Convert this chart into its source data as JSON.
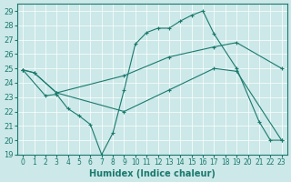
{
  "xlabel": "Humidex (Indice chaleur)",
  "bg_color": "#cce8e8",
  "line_color": "#1a7a6e",
  "xlim": [
    -0.5,
    23.5
  ],
  "ylim": [
    19,
    29.5
  ],
  "yticks": [
    19,
    20,
    21,
    22,
    23,
    24,
    25,
    26,
    27,
    28,
    29
  ],
  "xticks": [
    0,
    1,
    2,
    3,
    4,
    5,
    6,
    7,
    8,
    9,
    10,
    11,
    12,
    13,
    14,
    15,
    16,
    17,
    18,
    19,
    20,
    21,
    22,
    23
  ],
  "line1_x": [
    0,
    2,
    3,
    4,
    5,
    6,
    7,
    8,
    9,
    10,
    11,
    12,
    13,
    14,
    15,
    16,
    17,
    19,
    21,
    22,
    23
  ],
  "line1_y": [
    24.9,
    23.1,
    23.2,
    22.2,
    21.7,
    21.1,
    19.0,
    20.5,
    23.5,
    26.7,
    27.5,
    27.8,
    27.8,
    28.3,
    28.7,
    29.0,
    27.4,
    25.0,
    21.3,
    20.0,
    20.0
  ],
  "line2_x": [
    0,
    1,
    3,
    9,
    13,
    17,
    19,
    23
  ],
  "line2_y": [
    24.9,
    24.7,
    23.3,
    24.5,
    25.8,
    26.5,
    26.8,
    25.0
  ],
  "line3_x": [
    0,
    1,
    3,
    9,
    13,
    17,
    19,
    23
  ],
  "line3_y": [
    24.9,
    24.7,
    23.3,
    22.0,
    23.5,
    25.0,
    24.8,
    20.0
  ]
}
